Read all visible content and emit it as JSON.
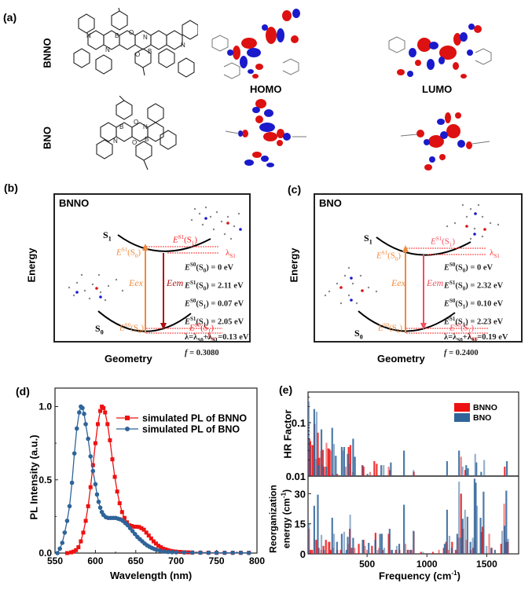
{
  "figure": {
    "panels": {
      "a": {
        "label": "(a)",
        "rows": [
          {
            "molecule": "BNNO",
            "structure_icon": "molecular-structure-icon"
          },
          {
            "molecule": "BNO",
            "structure_icon": "molecular-structure-icon"
          }
        ],
        "orbital_labels": [
          "HOMO",
          "LUMO"
        ]
      },
      "b": {
        "label": "(b)",
        "title": "BNNO",
        "y_axis": "Energy",
        "x_axis": "Geometry",
        "states": {
          "s1": "S",
          "s1_sub": "1",
          "s0": "S",
          "s0_sub": "0"
        },
        "arrows": {
          "excitation": "Eex",
          "emission": "Eem"
        },
        "markers": {
          "es1_s0": {
            "base": "E",
            "sup": "S1",
            "rest": "(S",
            "sub": "0",
            "close": ")"
          },
          "es1_s1": {
            "base": "E",
            "sup": "S1",
            "rest": "(S",
            "sub": "1",
            "close": ")"
          },
          "es0_s0": {
            "base": "E",
            "sup": "S0",
            "rest": "(S",
            "sub": "0",
            "close": ")"
          },
          "es0_s1": {
            "base": "E",
            "sup": "S0",
            "rest": "(S",
            "sub": "1",
            "close": ")"
          },
          "lambda_s1": {
            "base": "λ",
            "sub": "S1"
          },
          "lambda_s0": {
            "base": "λ",
            "sub": "S0"
          }
        },
        "values": [
          {
            "term": "E",
            "sup": "S0",
            "state": "S",
            "sub": "0",
            "value": ") = 0 eV"
          },
          {
            "term": "E",
            "sup": "S1",
            "state": "S",
            "sub": "0",
            "value": ") = 2.11 eV"
          },
          {
            "term": "E",
            "sup": "S0",
            "state": "S",
            "sub": "1",
            "value": ") = 0.07 eV"
          },
          {
            "term": "E",
            "sup": "S1",
            "state": "S",
            "sub": "1",
            "value": ") = 2.05 eV"
          }
        ],
        "lambda_line": {
          "prefix": "λ=λ",
          "s0": "S0",
          "plus": "+λ",
          "s1": "S1",
          "value": "=0.13 eV"
        },
        "f_line": {
          "f": "f",
          "value": " = 0.3080"
        }
      },
      "c": {
        "label": "(c)",
        "title": "BNO",
        "y_axis": "Energy",
        "x_axis": "Geometry",
        "states": {
          "s1": "S",
          "s1_sub": "1",
          "s0": "S",
          "s0_sub": "0"
        },
        "arrows": {
          "excitation": "Eex",
          "emission": "Eem"
        },
        "markers": {
          "es1_s0": {
            "base": "E",
            "sup": "S1",
            "rest": "(S",
            "sub": "0",
            "close": ")"
          },
          "es1_s1": {
            "base": "E",
            "sup": "S1",
            "rest": "(S",
            "sub": "1",
            "close": ")"
          },
          "es0_s0": {
            "base": "E",
            "sup": "S0",
            "rest": "(S",
            "sub": "0",
            "close": ")"
          },
          "es0_s1": {
            "base": "E",
            "sup": "S0",
            "rest": "(S",
            "sub": "1",
            "close": ")"
          },
          "lambda_s1": {
            "base": "λ",
            "sub": "S1"
          },
          "lambda_s0": {
            "base": "λ",
            "sub": "S0"
          }
        },
        "values": [
          {
            "term": "E",
            "sup": "S0",
            "state": "S",
            "sub": "0",
            "value": ") = 0 eV"
          },
          {
            "term": "E",
            "sup": "S1",
            "state": "S",
            "sub": "0",
            "value": ") = 2.32 eV"
          },
          {
            "term": "E",
            "sup": "S0",
            "state": "S",
            "sub": "1",
            "value": ") = 0.10 eV"
          },
          {
            "term": "E",
            "sup": "S1",
            "state": "S",
            "sub": "1",
            "value": ") = 2.23 eV"
          }
        ],
        "lambda_line": {
          "prefix": "λ=λ",
          "s0": "S0",
          "plus": "+λ",
          "s1": "S1",
          "value": "=0.19 eV"
        },
        "f_line": {
          "f": "f",
          "value": " = 0.2400"
        }
      },
      "d": {
        "label": "(d)"
      },
      "e": {
        "label": "(e)"
      }
    },
    "colors": {
      "bnno_red": "#ee1111",
      "bno_blue": "#2f6499",
      "excitation_orange": "#f08a3c",
      "emission_dark_red": "#b01010",
      "emission_pink": "#f05060",
      "lambda_red": "#ff3030",
      "orbital_red": "#dd1111",
      "orbital_blue": "#1a1acc"
    }
  },
  "chart_data": [
    {
      "id": "d",
      "type": "line",
      "title": "",
      "xlabel": "Wavelength (nm)",
      "ylabel": "PL Intensity (a.u.)",
      "xlim": [
        550,
        800
      ],
      "ylim": [
        0,
        1.05
      ],
      "xticks": [
        "550",
        "600",
        "650",
        "700",
        "750",
        "800"
      ],
      "yticks": [
        "0.0",
        "0.5",
        "1.0"
      ],
      "legend_position": "top-right",
      "series": [
        {
          "name": "simulated PL of BNNO",
          "marker": "square",
          "color": "#ee1111",
          "x": [
            565,
            570,
            573,
            576,
            579,
            582,
            585,
            588,
            591,
            594,
            597,
            600,
            603,
            606,
            608,
            610,
            612,
            615,
            618,
            621,
            624,
            627,
            630,
            633,
            636,
            639,
            642,
            645,
            648,
            651,
            654,
            657,
            660,
            663,
            666,
            669,
            672,
            675,
            678,
            681,
            684,
            687,
            690,
            693,
            696,
            700,
            705,
            710,
            715,
            720,
            730,
            740,
            750,
            760,
            770,
            780,
            790
          ],
          "y": [
            0.0,
            0.005,
            0.01,
            0.02,
            0.04,
            0.08,
            0.14,
            0.22,
            0.32,
            0.45,
            0.6,
            0.75,
            0.88,
            0.97,
            1.0,
            0.99,
            0.96,
            0.88,
            0.77,
            0.64,
            0.52,
            0.42,
            0.34,
            0.28,
            0.24,
            0.21,
            0.19,
            0.185,
            0.18,
            0.18,
            0.178,
            0.17,
            0.16,
            0.14,
            0.12,
            0.1,
            0.08,
            0.065,
            0.05,
            0.04,
            0.03,
            0.025,
            0.02,
            0.015,
            0.012,
            0.01,
            0.008,
            0.006,
            0.005,
            0.004,
            0.003,
            0.003,
            0.002,
            0.002,
            0.002,
            0.002,
            0.002
          ]
        },
        {
          "name": "simulated PL of BNO",
          "marker": "circle",
          "color": "#2f6499",
          "x": [
            553,
            556,
            559,
            562,
            565,
            568,
            571,
            574,
            577,
            580,
            582,
            584,
            586,
            588,
            591,
            594,
            597,
            600,
            602,
            604,
            606,
            608,
            610,
            613,
            616,
            619,
            622,
            625,
            628,
            631,
            634,
            637,
            640,
            643,
            646,
            649,
            652,
            655,
            658,
            661,
            664,
            667,
            670,
            673,
            676,
            680,
            685,
            690,
            695,
            700,
            710,
            720,
            730,
            740,
            750,
            760,
            770,
            780,
            790
          ],
          "y": [
            0.0,
            0.03,
            0.07,
            0.14,
            0.22,
            0.32,
            0.48,
            0.68,
            0.85,
            0.96,
            1.0,
            0.99,
            0.95,
            0.88,
            0.78,
            0.66,
            0.56,
            0.47,
            0.4,
            0.35,
            0.31,
            0.28,
            0.26,
            0.245,
            0.24,
            0.24,
            0.24,
            0.24,
            0.235,
            0.23,
            0.22,
            0.205,
            0.19,
            0.17,
            0.15,
            0.13,
            0.11,
            0.095,
            0.08,
            0.065,
            0.053,
            0.043,
            0.035,
            0.028,
            0.022,
            0.016,
            0.011,
            0.008,
            0.006,
            0.005,
            0.004,
            0.003,
            0.003,
            0.002,
            0.002,
            0.002,
            0.002,
            0.002,
            0.001
          ]
        }
      ]
    },
    {
      "id": "e-top",
      "type": "bar",
      "ylabel": "HR Factor",
      "yscale": "log",
      "ylim": [
        0.01,
        0.35
      ],
      "yticks": [
        "0.01",
        "0.1"
      ],
      "xlim": [
        0,
        1760
      ],
      "legend": [
        "BNNO",
        "BNO"
      ],
      "legend_position": "top-right",
      "series": [
        {
          "name": "BNNO",
          "color": "#ee1111",
          "x": [
            10,
            18,
            25,
            35,
            45,
            60,
            75,
            88,
            100,
            115,
            130,
            140,
            160,
            175,
            185,
            195,
            210,
            250,
            320,
            345,
            360,
            380,
            460,
            470,
            525,
            560,
            580,
            680,
            690,
            890,
            1285,
            1320,
            1650
          ],
          "y": [
            0.03,
            0.05,
            0.045,
            0.038,
            0.038,
            0.095,
            0.021,
            0.065,
            0.022,
            0.03,
            0.031,
            0.015,
            0.042,
            0.033,
            0.032,
            0.03,
            0.011,
            0.011,
            0.015,
            0.035,
            0.038,
            0.012,
            0.016,
            0.015,
            0.012,
            0.019,
            0.017,
            0.015,
            0.013,
            0.012,
            0.023,
            0.013,
            0.015
          ]
        },
        {
          "name": "BNO",
          "color": "#2f6499",
          "x": [
            5,
            12,
            50,
            70,
            85,
            110,
            120,
            150,
            200,
            215,
            230,
            280,
            290,
            300,
            330,
            345,
            375,
            390,
            455,
            495,
            610,
            630,
            690,
            800,
            880,
            1160,
            1260,
            1290,
            1320,
            1335,
            1395,
            1405,
            1445,
            1470,
            1660
          ],
          "y": [
            0.25,
            0.035,
            0.18,
            0.16,
            0.016,
            0.075,
            0.016,
            0.015,
            0.08,
            0.04,
            0.024,
            0.035,
            0.03,
            0.035,
            0.026,
            0.017,
            0.05,
            0.023,
            0.016,
            0.011,
            0.016,
            0.016,
            0.018,
            0.03,
            0.013,
            0.019,
            0.03,
            0.015,
            0.016,
            0.014,
            0.026,
            0.018,
            0.012,
            0.02,
            0.019
          ]
        }
      ]
    },
    {
      "id": "e-bottom",
      "type": "bar",
      "ylabel": "Reorganization energy (cm⁻¹)",
      "xlabel": "Frequency (cm⁻¹)",
      "ylim": [
        0,
        38
      ],
      "yticks": [
        "0",
        "15",
        "30"
      ],
      "xlim": [
        0,
        1760
      ],
      "xticks": [
        "500",
        "1000",
        "1500"
      ],
      "series": [
        {
          "name": "BNNO",
          "color": "#ee1111",
          "x": [
            15,
            25,
            40,
            60,
            75,
            95,
            115,
            135,
            155,
            175,
            185,
            195,
            215,
            250,
            280,
            340,
            355,
            370,
            395,
            430,
            470,
            500,
            540,
            570,
            600,
            630,
            680,
            700,
            740,
            770,
            820,
            840,
            870,
            890,
            950,
            1050,
            1100,
            1140,
            1160,
            1180,
            1210,
            1240,
            1265,
            1285,
            1300,
            1330,
            1365,
            1385,
            1400,
            1455,
            1465,
            1520,
            1540,
            1620,
            1645,
            1660,
            1675
          ],
          "y": [
            12.5,
            2,
            2,
            7,
            7,
            3,
            2,
            4,
            7,
            6,
            6,
            2,
            3,
            2,
            2,
            5,
            12.5,
            3,
            3,
            5,
            7,
            2,
            4,
            10.5,
            3,
            2,
            10,
            2,
            2,
            2,
            5,
            2,
            2,
            11,
            1,
            1,
            2,
            3,
            6,
            2,
            6,
            2,
            8,
            30,
            12.5,
            7,
            2,
            3,
            6.5,
            11,
            13.5,
            10,
            3,
            5,
            25,
            6,
            6
          ]
        },
        {
          "name": "BNO",
          "color": "#2f6499",
          "x": [
            5,
            50,
            80,
            110,
            130,
            200,
            215,
            240,
            280,
            300,
            320,
            330,
            350,
            375,
            455,
            475,
            505,
            560,
            580,
            600,
            615,
            635,
            680,
            700,
            740,
            760,
            800,
            830,
            850,
            880,
            960,
            1140,
            1160,
            1180,
            1200,
            1245,
            1260,
            1275,
            1290,
            1310,
            1330,
            1355,
            1375,
            1390,
            1400,
            1410,
            1440,
            1465,
            1490,
            1530,
            1560,
            1620,
            1640,
            1655,
            1670
          ],
          "y": [
            15,
            24,
            29.5,
            9.5,
            2,
            18,
            10,
            6,
            10,
            11,
            2,
            8.5,
            19.5,
            8,
            7,
            4,
            5.5,
            7,
            2,
            10,
            10,
            3,
            12.5,
            2,
            4,
            5,
            24.5,
            2,
            2,
            11.5,
            1,
            5,
            22,
            9,
            3,
            10,
            36,
            8,
            17.5,
            22,
            18.5,
            6,
            8,
            37.5,
            35.5,
            24,
            18,
            31,
            4,
            3,
            2,
            11.5,
            14,
            31.5,
            7.5
          ]
        }
      ]
    }
  ]
}
